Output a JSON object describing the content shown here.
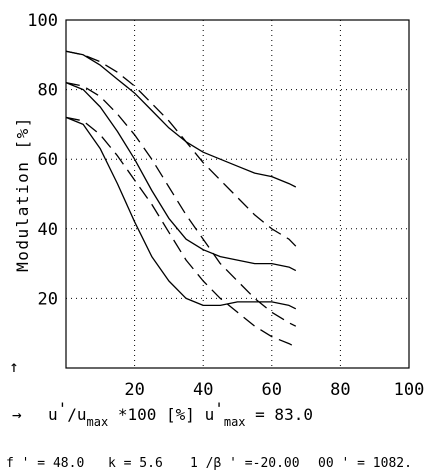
{
  "chart_data": {
    "type": "line",
    "ylabel": "Modulation [%]",
    "xlim": [
      0,
      100
    ],
    "ylim": [
      0,
      100
    ],
    "xticks": [
      "20",
      "40",
      "60",
      "80",
      "100"
    ],
    "yticks": [
      "20",
      "40",
      "60",
      "80",
      "100"
    ],
    "grid": true,
    "series": [
      {
        "style": "solid",
        "x": [
          0,
          5,
          10,
          15,
          20,
          25,
          30,
          35,
          40,
          45,
          50,
          55,
          60,
          65,
          67
        ],
        "y": [
          91,
          90,
          87,
          83,
          79,
          74,
          69,
          65,
          62,
          60,
          58,
          56,
          55,
          53,
          52
        ]
      },
      {
        "style": "solid",
        "x": [
          0,
          5,
          10,
          15,
          20,
          25,
          30,
          35,
          40,
          45,
          50,
          55,
          60,
          65,
          67
        ],
        "y": [
          82,
          80,
          75,
          68,
          60,
          51,
          43,
          37,
          34,
          32,
          31,
          30,
          30,
          29,
          28
        ]
      },
      {
        "style": "solid",
        "x": [
          0,
          5,
          10,
          15,
          20,
          25,
          30,
          35,
          40,
          45,
          50,
          55,
          60,
          65,
          67
        ],
        "y": [
          72,
          70,
          63,
          53,
          42,
          32,
          25,
          20,
          18,
          18,
          19,
          19,
          19,
          18,
          17
        ]
      },
      {
        "style": "dashed",
        "x": [
          0,
          5,
          10,
          15,
          20,
          25,
          30,
          35,
          40,
          45,
          50,
          55,
          60,
          65,
          67
        ],
        "y": [
          91,
          90,
          88,
          85,
          81,
          76,
          71,
          65,
          59,
          54,
          49,
          44,
          40,
          37,
          35
        ]
      },
      {
        "style": "dashed",
        "x": [
          0,
          5,
          10,
          15,
          20,
          25,
          30,
          35,
          40,
          45,
          50,
          55,
          60,
          65,
          67
        ],
        "y": [
          82,
          81,
          78,
          73,
          67,
          60,
          52,
          44,
          37,
          30,
          25,
          20,
          16,
          13,
          12
        ]
      },
      {
        "style": "dashed",
        "x": [
          0,
          5,
          10,
          15,
          20,
          25,
          30,
          35,
          40,
          45,
          50,
          55,
          60,
          65,
          67
        ],
        "y": [
          72,
          71,
          67,
          61,
          54,
          47,
          39,
          31,
          25,
          20,
          16,
          12,
          9,
          7,
          6
        ]
      }
    ]
  },
  "labels": {
    "y_arrow": "↑",
    "x_arrow": "→",
    "x_axis_parts": {
      "u1": "u",
      "u1sup": "'",
      "slash": "/u",
      "u1sub": "max",
      "u1mid": " *100 [%] u",
      "u2sup": "'",
      "u2sub": "max",
      "u2val": " = 83.0"
    },
    "params": {
      "f": "f ' = 48.0",
      "k": "k = 5.6",
      "beta": "1 /β ' =-20.00",
      "oo": "00 ' = 1082."
    }
  }
}
